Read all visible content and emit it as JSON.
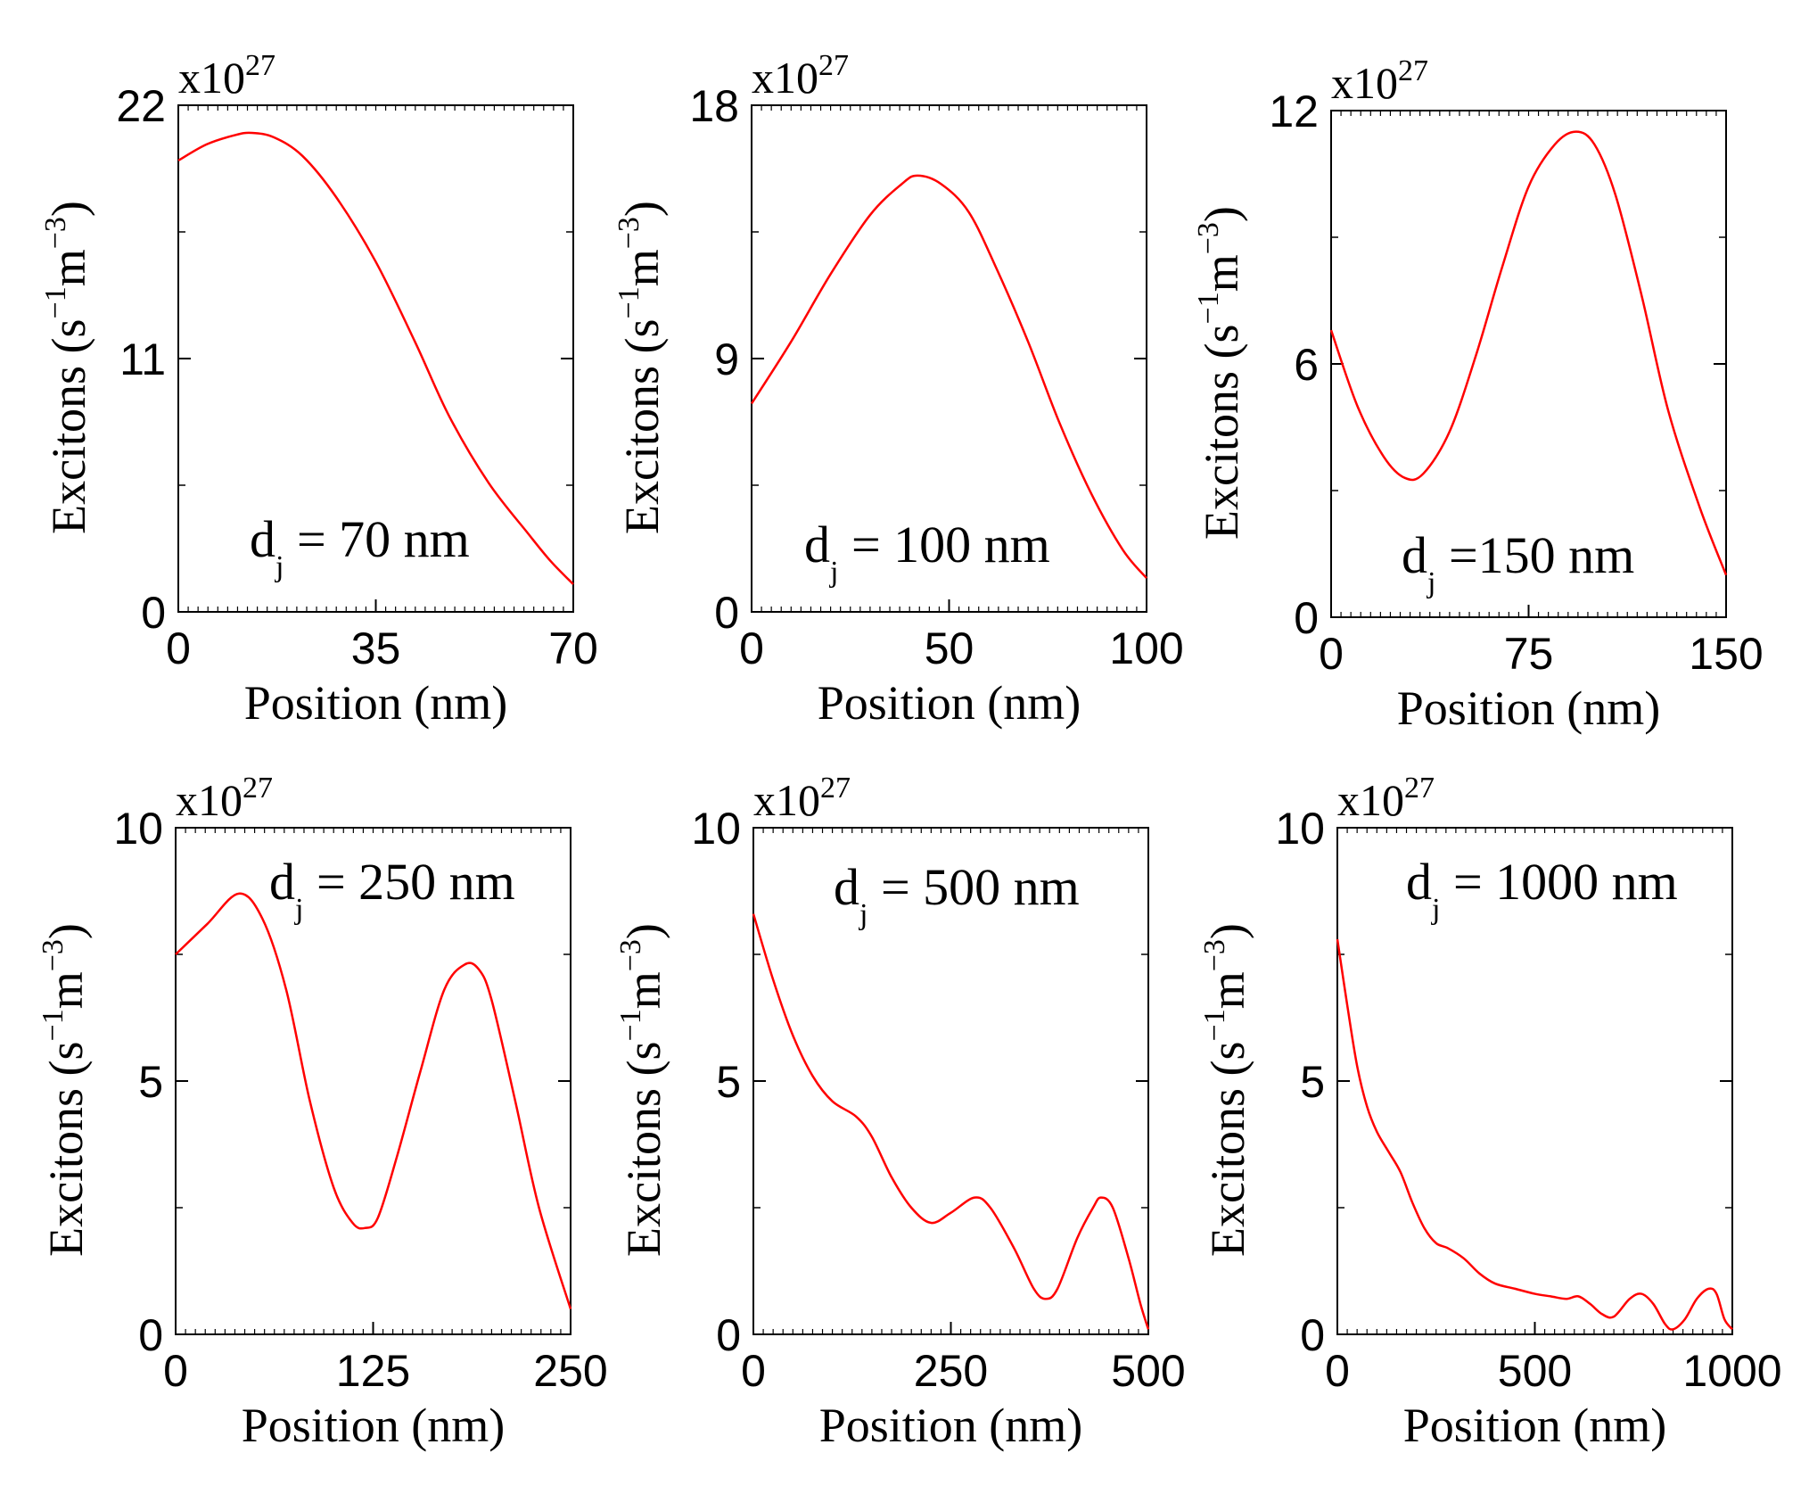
{
  "chart_data": [
    {
      "type": "line",
      "annotation": {
        "main": "d",
        "sub": "j",
        "rest": " = 70 nm"
      },
      "xlabel": "Position (nm)",
      "ylabel": {
        "main": "Excitons (s",
        "sup1": "−1",
        "mid": "m",
        "sup2": "−3",
        "end": ")"
      },
      "multiplier": {
        "base": "x10",
        "exp": "27"
      },
      "color": "#ff0000",
      "xlim": [
        0,
        70
      ],
      "ylim": [
        0,
        22
      ],
      "xticks": [
        0,
        35,
        70
      ],
      "yticks": [
        0,
        11,
        22
      ],
      "x": [
        0,
        5,
        10,
        13,
        17,
        22,
        28,
        35,
        42,
        48,
        55,
        62,
        66,
        70
      ],
      "y": [
        19.6,
        20.3,
        20.7,
        20.8,
        20.6,
        19.8,
        18.0,
        15.2,
        11.7,
        8.5,
        5.6,
        3.4,
        2.2,
        1.2
      ]
    },
    {
      "type": "line",
      "annotation": {
        "main": "d",
        "sub": "j",
        "rest": " = 100 nm"
      },
      "xlabel": "Position (nm)",
      "ylabel": {
        "main": "Excitons (s",
        "sup1": "−1",
        "mid": "m",
        "sup2": "−3",
        "end": ")"
      },
      "multiplier": {
        "base": "x10",
        "exp": "27"
      },
      "color": "#ff0000",
      "xlim": [
        0,
        100
      ],
      "ylim": [
        0,
        18
      ],
      "xticks": [
        0,
        50,
        100
      ],
      "yticks": [
        0,
        9,
        18
      ],
      "x": [
        0,
        10,
        20,
        30,
        38,
        42,
        48,
        55,
        62,
        70,
        78,
        86,
        94,
        100
      ],
      "y": [
        7.4,
        9.6,
        12.0,
        14.1,
        15.2,
        15.5,
        15.2,
        14.2,
        12.2,
        9.6,
        6.7,
        4.2,
        2.2,
        1.2
      ]
    },
    {
      "type": "line",
      "annotation": {
        "main": "d",
        "sub": "j",
        "rest": " =150 nm"
      },
      "xlabel": "Position (nm)",
      "ylabel": {
        "main": "Excitons (s",
        "sup1": "−1",
        "mid": "m",
        "sup2": "−3",
        "end": ")"
      },
      "multiplier": {
        "base": "x10",
        "exp": "27"
      },
      "color": "#ff0000",
      "xlim": [
        0,
        150
      ],
      "ylim": [
        0,
        12
      ],
      "xticks": [
        0,
        75,
        150
      ],
      "yticks": [
        0,
        6,
        12
      ],
      "x": [
        0,
        10,
        20,
        28,
        35,
        45,
        55,
        65,
        75,
        85,
        93,
        100,
        108,
        118,
        128,
        140,
        150
      ],
      "y": [
        6.8,
        5.0,
        3.8,
        3.3,
        3.4,
        4.4,
        6.2,
        8.3,
        10.2,
        11.2,
        11.5,
        11.2,
        10.0,
        7.6,
        4.9,
        2.6,
        1.0
      ]
    },
    {
      "type": "line",
      "annotation": {
        "main": "d",
        "sub": "j",
        "rest": " = 250 nm"
      },
      "xlabel": "Position (nm)",
      "ylabel": {
        "main": "Excitons (s",
        "sup1": "−1",
        "mid": "m",
        "sup2": "−3",
        "end": ")"
      },
      "multiplier": {
        "base": "x10",
        "exp": "27"
      },
      "color": "#ff0000",
      "xlim": [
        0,
        250
      ],
      "ylim": [
        0,
        10
      ],
      "xticks": [
        0,
        125,
        250
      ],
      "yticks": [
        0,
        5,
        10
      ],
      "x": [
        0,
        20,
        40,
        55,
        70,
        85,
        100,
        112,
        120,
        128,
        140,
        155,
        170,
        183,
        192,
        200,
        215,
        230,
        250
      ],
      "y": [
        7.5,
        8.1,
        8.7,
        8.2,
        6.8,
        4.6,
        2.9,
        2.2,
        2.1,
        2.3,
        3.5,
        5.2,
        6.8,
        7.3,
        7.2,
        6.6,
        4.6,
        2.5,
        0.5
      ]
    },
    {
      "type": "line",
      "annotation": {
        "main": "d",
        "sub": "j",
        "rest": " = 500 nm"
      },
      "xlabel": "Position (nm)",
      "ylabel": {
        "main": "Excitons (s",
        "sup1": "−1",
        "mid": "m",
        "sup2": "−3",
        "end": ")"
      },
      "multiplier": {
        "base": "x10",
        "exp": "27"
      },
      "color": "#ff0000",
      "xlim": [
        0,
        500
      ],
      "ylim": [
        0,
        10
      ],
      "xticks": [
        0,
        250,
        500
      ],
      "yticks": [
        0,
        5,
        10
      ],
      "x": [
        0,
        25,
        50,
        75,
        100,
        130,
        150,
        175,
        200,
        225,
        250,
        280,
        300,
        330,
        355,
        370,
        385,
        410,
        430,
        440,
        455,
        475,
        490,
        500
      ],
      "y": [
        8.3,
        7.0,
        5.9,
        5.1,
        4.6,
        4.3,
        3.9,
        3.1,
        2.5,
        2.2,
        2.4,
        2.7,
        2.5,
        1.7,
        0.9,
        0.7,
        0.9,
        1.9,
        2.5,
        2.7,
        2.5,
        1.5,
        0.6,
        0.1
      ]
    },
    {
      "type": "line",
      "annotation": {
        "main": "d",
        "sub": "j",
        "rest": " = 1000 nm"
      },
      "xlabel": "Position (nm)",
      "ylabel": {
        "main": "Excitons (s",
        "sup1": "−1",
        "mid": "m",
        "sup2": "−3",
        "end": ")"
      },
      "multiplier": {
        "base": "x10",
        "exp": "27"
      },
      "color": "#ff0000",
      "xlim": [
        0,
        1000
      ],
      "ylim": [
        0,
        10
      ],
      "xticks": [
        0,
        500,
        1000
      ],
      "yticks": [
        0,
        5,
        10
      ],
      "x": [
        0,
        25,
        50,
        75,
        100,
        130,
        160,
        190,
        220,
        250,
        280,
        320,
        360,
        400,
        450,
        500,
        540,
        580,
        610,
        640,
        670,
        700,
        740,
        770,
        800,
        830,
        850,
        880,
        910,
        940,
        960,
        980,
        1000
      ],
      "y": [
        7.8,
        6.5,
        5.3,
        4.5,
        4.0,
        3.6,
        3.2,
        2.6,
        2.1,
        1.8,
        1.7,
        1.5,
        1.2,
        1.0,
        0.9,
        0.8,
        0.75,
        0.7,
        0.75,
        0.6,
        0.4,
        0.35,
        0.7,
        0.8,
        0.6,
        0.2,
        0.1,
        0.3,
        0.7,
        0.9,
        0.8,
        0.3,
        0.1
      ]
    }
  ]
}
